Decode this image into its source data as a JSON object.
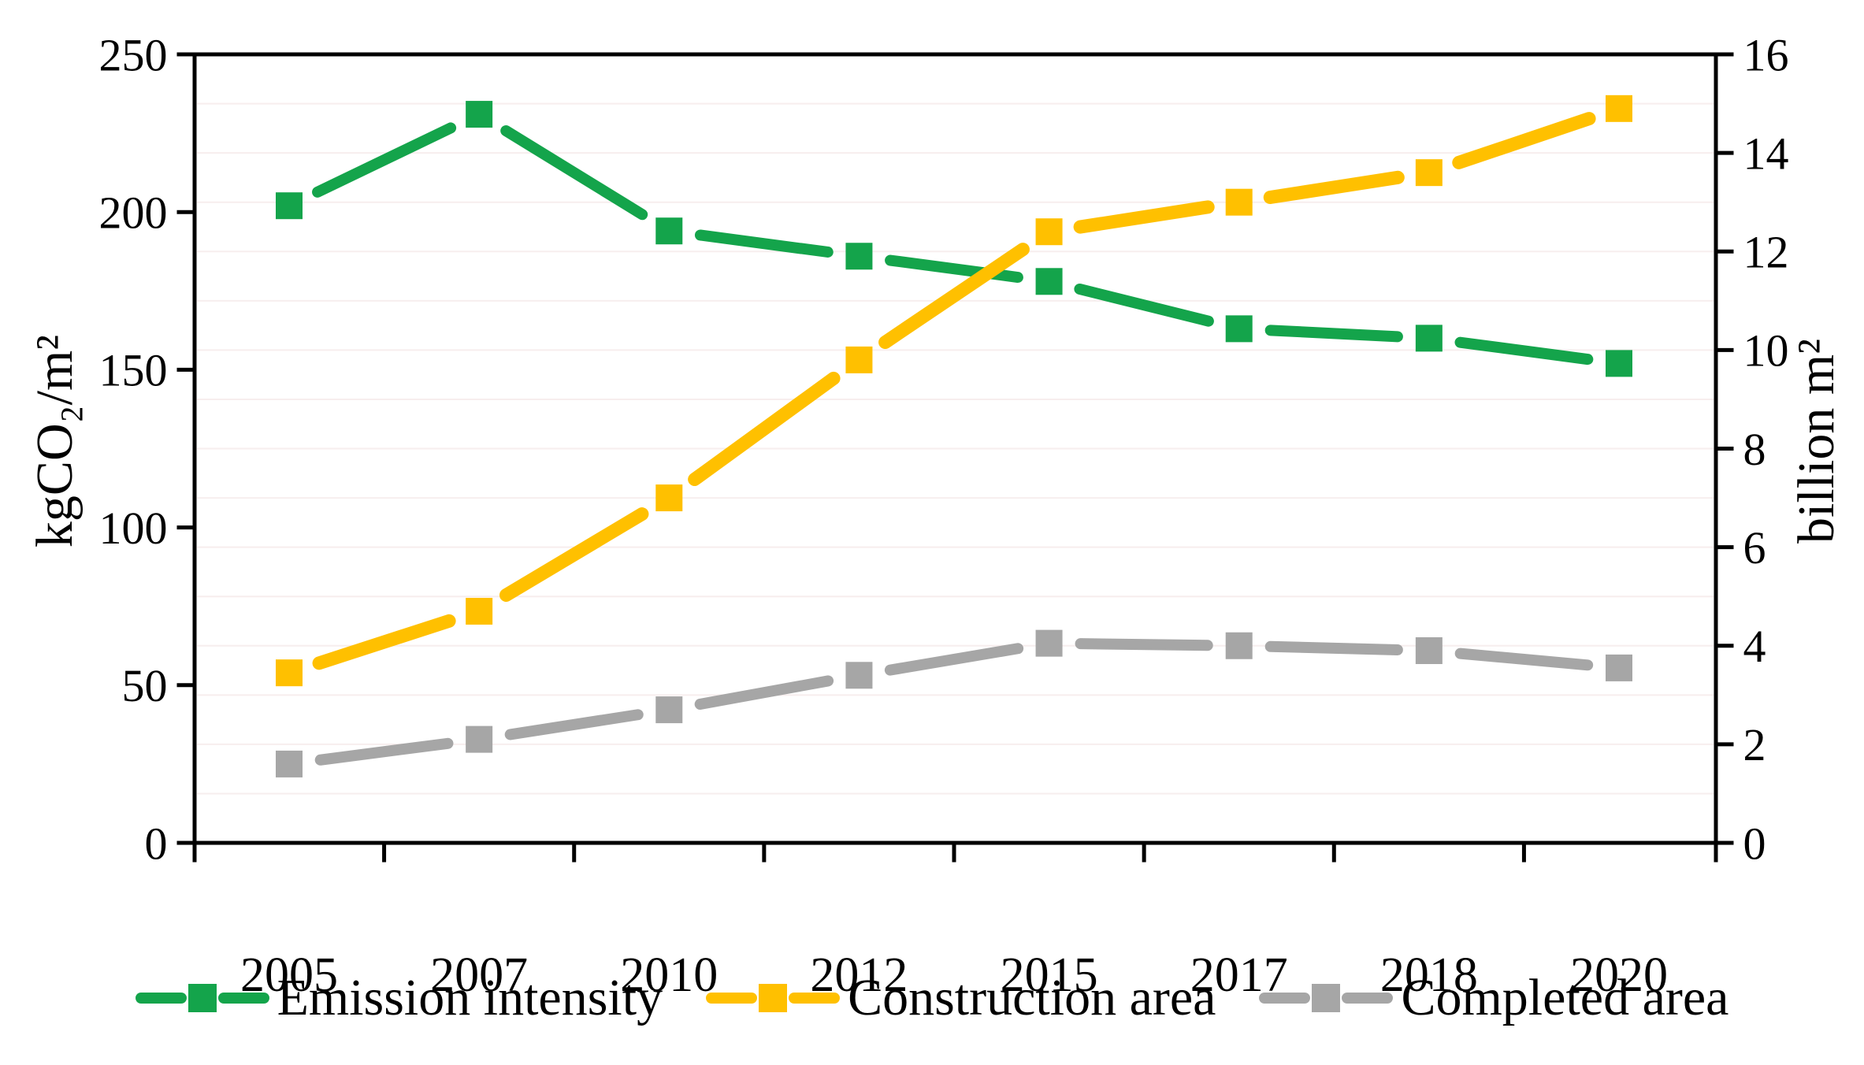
{
  "chart_data": {
    "type": "line",
    "title": "",
    "categories": [
      "2005",
      "2007",
      "2010",
      "2012",
      "2015",
      "2017",
      "2018",
      "2020"
    ],
    "series": [
      {
        "name": "Emission intensity",
        "axis": "left",
        "color": "#14A44B",
        "marker": "square",
        "values": [
          202,
          231,
          194,
          186,
          178,
          163,
          160,
          152
        ]
      },
      {
        "name": "Construction area",
        "axis": "right",
        "color": "#FFC000",
        "marker": "square",
        "values": [
          3.45,
          4.7,
          7.0,
          9.8,
          12.4,
          13.0,
          13.6,
          14.9
        ]
      },
      {
        "name": "Completed area",
        "axis": "right",
        "color": "#A6A6A6",
        "marker": "square",
        "values": [
          1.6,
          2.1,
          2.7,
          3.4,
          4.05,
          4.0,
          3.9,
          3.55
        ]
      }
    ],
    "left_axis": {
      "label": "kgCO₂/m²",
      "min": 0,
      "max": 250,
      "tick_step": 50,
      "tick_labels": [
        "0",
        "50",
        "100",
        "150",
        "200",
        "250"
      ]
    },
    "right_axis": {
      "label": "billion m²",
      "min": 0,
      "max": 16,
      "tick_step": 2,
      "tick_labels": [
        "0",
        "2",
        "4",
        "6",
        "8",
        "10",
        "12",
        "14",
        "16"
      ]
    },
    "x_axis": {
      "tick_labels": [
        "2005",
        "2007",
        "2010",
        "2012",
        "2015",
        "2017",
        "2018",
        "2020"
      ]
    },
    "legend": {
      "position": "bottom"
    },
    "grid": {
      "horizontal_minor": true
    },
    "colors": {
      "axis": "#000000",
      "background": "#FFFFFF",
      "gridline": "#F7EEEE"
    }
  }
}
